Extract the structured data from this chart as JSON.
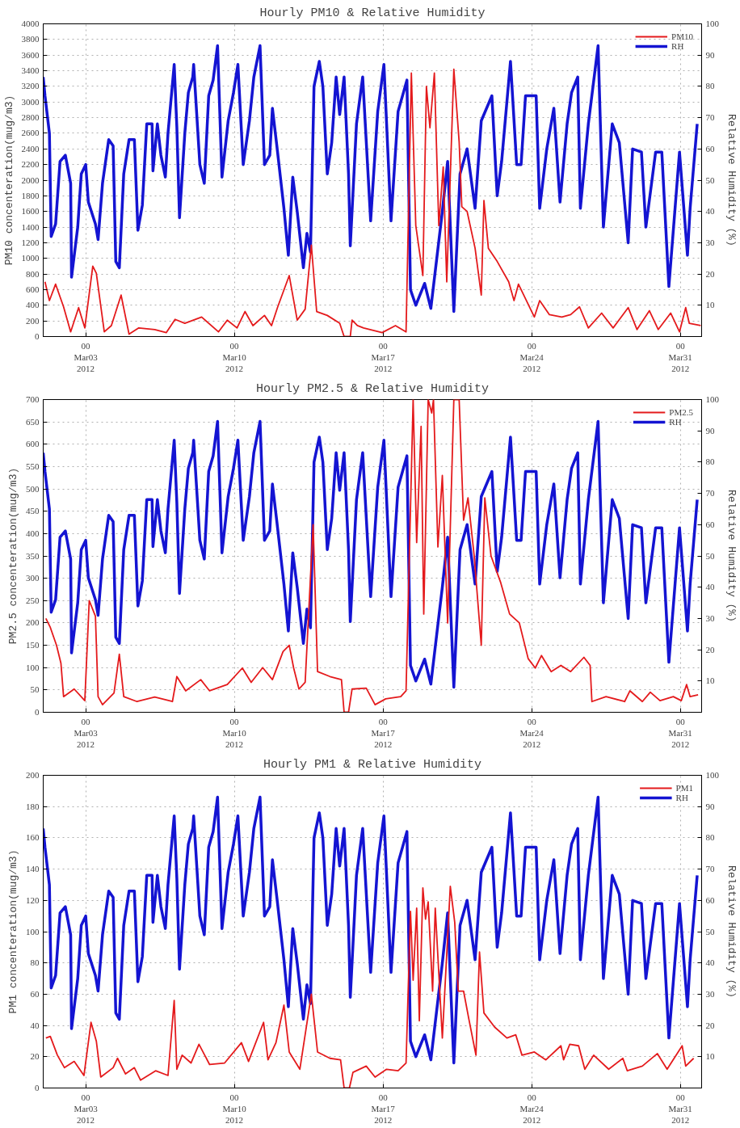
{
  "chart_data": [
    {
      "type": "line",
      "title": "Hourly PM10 & Relative Humidity",
      "ylabel": "PM10 concenteration(mug/m3)",
      "y2label": "Relative Humidity (%)",
      "xlim": [
        "2012-03-01",
        "2012-04-01"
      ],
      "xticks": [
        {
          "value": "2012-03-03",
          "label": "00\nMar03\n2012"
        },
        {
          "value": "2012-03-10",
          "label": "00\nMar10\n2012"
        },
        {
          "value": "2012-03-17",
          "label": "00\nMar17\n2012"
        },
        {
          "value": "2012-03-24",
          "label": "00\nMar24\n2012"
        },
        {
          "value": "2012-03-31",
          "label": "00\nMar31\n2012"
        }
      ],
      "ylim": [
        0,
        4000
      ],
      "yticks": [
        0,
        200,
        400,
        600,
        800,
        1000,
        1200,
        1400,
        1600,
        1800,
        2000,
        2200,
        2400,
        2600,
        2800,
        3000,
        3200,
        3400,
        3600,
        3800,
        4000
      ],
      "y2lim": [
        0,
        100
      ],
      "y2ticks": [
        10,
        20,
        30,
        40,
        50,
        60,
        70,
        80,
        90,
        100
      ],
      "grid": true,
      "legend": "top right",
      "series": [
        {
          "name": "PM10",
          "color": "#e41a1c",
          "x": [
            "2012-03-01T02:00",
            "2012-03-01T07:00",
            "2012-03-01T14:00",
            "2012-03-01T23:00",
            "2012-03-02T07:00",
            "2012-03-02T16:00",
            "2012-03-02T23:00",
            "2012-03-03T08:00",
            "2012-03-03T12:00",
            "2012-03-03T21:00",
            "2012-03-04T05:00",
            "2012-03-04T16:00",
            "2012-03-05T01:00",
            "2012-03-05T12:00",
            "2012-03-06T06:00",
            "2012-03-06T19:00",
            "2012-03-07T05:00",
            "2012-03-07T16:00",
            "2012-03-08T11:00",
            "2012-03-09T06:00",
            "2012-03-09T16:00",
            "2012-03-10T03:00",
            "2012-03-10T12:00",
            "2012-03-10T21:00",
            "2012-03-11T10:00",
            "2012-03-11T18:00",
            "2012-03-12T01:00",
            "2012-03-12T14:00",
            "2012-03-12T23:00",
            "2012-03-13T08:00",
            "2012-03-13T15:00",
            "2012-03-13T21:00",
            "2012-03-14T09:00",
            "2012-03-14T23:00",
            "2012-03-15T04:00",
            "2012-03-15T11:00",
            "2012-03-15T13:00",
            "2012-03-15T19:00",
            "2012-03-16T02:00",
            "2012-03-16T23:00",
            "2012-03-17T14:00",
            "2012-03-18T02:00",
            "2012-03-18T08:00",
            "2012-03-18T13:00",
            "2012-03-18T21:00",
            "2012-03-19T01:00",
            "2012-03-19T05:00",
            "2012-03-19T10:00",
            "2012-03-19T15:00",
            "2012-03-19T20:00",
            "2012-03-20T00:00",
            "2012-03-20T08:00",
            "2012-03-20T14:00",
            "2012-03-20T17:00",
            "2012-03-20T23:00",
            "2012-03-21T08:00",
            "2012-03-21T15:00",
            "2012-03-21T18:00",
            "2012-03-21T23:00",
            "2012-03-22T09:00",
            "2012-03-22T22:00",
            "2012-03-23T04:00",
            "2012-03-23T09:00",
            "2012-03-24T03:00",
            "2012-03-24T09:00",
            "2012-03-24T20:00",
            "2012-03-25T10:00",
            "2012-03-25T20:00",
            "2012-03-26T06:00",
            "2012-03-26T16:00",
            "2012-03-27T07:00",
            "2012-03-27T20:00",
            "2012-03-28T13:00",
            "2012-03-28T23:00",
            "2012-03-29T13:00",
            "2012-03-29T23:00",
            "2012-03-30T13:00",
            "2012-03-30T23:00",
            "2012-03-31T06:00",
            "2012-03-31T10:00",
            "2012-03-31T23:00"
          ],
          "values": [
            700,
            460,
            670,
            380,
            60,
            370,
            110,
            900,
            810,
            60,
            140,
            530,
            30,
            110,
            90,
            50,
            220,
            170,
            250,
            60,
            210,
            110,
            320,
            140,
            270,
            140,
            380,
            780,
            210,
            350,
            1170,
            320,
            270,
            170,
            0,
            0,
            210,
            140,
            110,
            50,
            140,
            60,
            3370,
            1420,
            780,
            3200,
            2670,
            3370,
            1420,
            2170,
            700,
            3420,
            2490,
            1660,
            1600,
            1130,
            530,
            1740,
            1130,
            960,
            700,
            460,
            670,
            250,
            460,
            280,
            250,
            280,
            380,
            110,
            300,
            110,
            370,
            90,
            330,
            90,
            300,
            60,
            370,
            170,
            140
          ]
        },
        {
          "name": "RH",
          "color": "#1414d2",
          "axis": "y2",
          "x": [
            "2012-03-01T00:00",
            "2012-03-01T02:00",
            "2012-03-01T07:00",
            "2012-03-01T09:00",
            "2012-03-01T14:00",
            "2012-03-01T19:00",
            "2012-03-02T01:00",
            "2012-03-02T07:00",
            "2012-03-02T08:00",
            "2012-03-02T15:00",
            "2012-03-02T19:00",
            "2012-03-03T00:00",
            "2012-03-03T03:00",
            "2012-03-03T11:00",
            "2012-03-03T14:00",
            "2012-03-03T19:00",
            "2012-03-04T02:00",
            "2012-03-04T07:00",
            "2012-03-04T10:00",
            "2012-03-04T14:00",
            "2012-03-04T19:00",
            "2012-03-05T01:00",
            "2012-03-05T07:00",
            "2012-03-05T11:00",
            "2012-03-05T16:00",
            "2012-03-05T21:00",
            "2012-03-06T03:00",
            "2012-03-06T04:00",
            "2012-03-06T09:00",
            "2012-03-06T13:00",
            "2012-03-06T18:00",
            "2012-03-06T21:00",
            "2012-03-07T04:00",
            "2012-03-07T07:00",
            "2012-03-07T10:00",
            "2012-03-07T16:00",
            "2012-03-07T20:00",
            "2012-03-08T01:00",
            "2012-03-08T02:00",
            "2012-03-08T09:00",
            "2012-03-08T14:00",
            "2012-03-08T19:00",
            "2012-03-09T00:00",
            "2012-03-09T05:00",
            "2012-03-09T10:00",
            "2012-03-09T17:00",
            "2012-03-09T23:00",
            "2012-03-10T04:00",
            "2012-03-10T10:00",
            "2012-03-10T17:00",
            "2012-03-10T22:00",
            "2012-03-11T05:00",
            "2012-03-11T10:00",
            "2012-03-11T16:00",
            "2012-03-11T19:00",
            "2012-03-12T00:00",
            "2012-03-12T08:00",
            "2012-03-12T13:00",
            "2012-03-12T18:00",
            "2012-03-12T23:00",
            "2012-03-13T06:00",
            "2012-03-13T10:00",
            "2012-03-13T14:00",
            "2012-03-13T18:00",
            "2012-03-14T00:00",
            "2012-03-14T04:00",
            "2012-03-14T09:00",
            "2012-03-14T14:00",
            "2012-03-14T19:00",
            "2012-03-14T23:00",
            "2012-03-15T04:00",
            "2012-03-15T09:00",
            "2012-03-15T11:00",
            "2012-03-15T18:00",
            "2012-03-16T01:00",
            "2012-03-16T10:00",
            "2012-03-16T18:00",
            "2012-03-17T01:00",
            "2012-03-17T09:00",
            "2012-03-17T17:00",
            "2012-03-18T03:00",
            "2012-03-18T07:00",
            "2012-03-18T13:00",
            "2012-03-18T23:00",
            "2012-03-19T06:00",
            "2012-03-19T19:00",
            "2012-03-20T01:00",
            "2012-03-20T08:00",
            "2012-03-20T15:00",
            "2012-03-20T23:00",
            "2012-03-21T08:00",
            "2012-03-21T15:00",
            "2012-03-22T03:00",
            "2012-03-22T09:00",
            "2012-03-22T14:00",
            "2012-03-23T00:00",
            "2012-03-23T07:00",
            "2012-03-23T12:00",
            "2012-03-23T17:00",
            "2012-03-24T05:00",
            "2012-03-24T09:00",
            "2012-03-24T17:00",
            "2012-03-25T01:00",
            "2012-03-25T08:00",
            "2012-03-25T16:00",
            "2012-03-25T21:00",
            "2012-03-26T04:00",
            "2012-03-26T07:00",
            "2012-03-26T16:00",
            "2012-03-27T03:00",
            "2012-03-27T09:00",
            "2012-03-27T19:00",
            "2012-03-28T03:00",
            "2012-03-28T13:00",
            "2012-03-28T18:00",
            "2012-03-29T04:00",
            "2012-03-29T09:00",
            "2012-03-29T20:00",
            "2012-03-30T03:00",
            "2012-03-30T11:00",
            "2012-03-30T23:00",
            "2012-03-31T08:00",
            "2012-03-31T11:00",
            "2012-03-31T19:00"
          ],
          "values": [
            83,
            77,
            65,
            32,
            36,
            56,
            58,
            49,
            19,
            35,
            52,
            55,
            43,
            36,
            31,
            49,
            63,
            61,
            24,
            22,
            52,
            63,
            63,
            34,
            42,
            68,
            68,
            53,
            68,
            58,
            51,
            65,
            87,
            67,
            38,
            65,
            78,
            83,
            87,
            55,
            49,
            77,
            82,
            93,
            51,
            69,
            78,
            87,
            55,
            69,
            83,
            93,
            55,
            58,
            73,
            61,
            41,
            26,
            51,
            40,
            22,
            33,
            27,
            80,
            88,
            80,
            52,
            62,
            83,
            71,
            83,
            52,
            29,
            68,
            83,
            37,
            72,
            87,
            37,
            72,
            82,
            15,
            10,
            17,
            9,
            40,
            56,
            8,
            52,
            60,
            41,
            69,
            77,
            45,
            56,
            88,
            55,
            55,
            77,
            77,
            41,
            60,
            73,
            43,
            68,
            78,
            83,
            41,
            68,
            93,
            35,
            68,
            62,
            30,
            60,
            59,
            35,
            59,
            59,
            16,
            59,
            26,
            41,
            68
          ]
        }
      ]
    },
    {
      "type": "line",
      "title": "Hourly PM2.5 & Relative Humidity",
      "ylabel": "PM2.5 concenteration(mug/m3)",
      "y2label": "Relative Humidity (%)",
      "xlim": [
        "2012-03-01",
        "2012-04-01"
      ],
      "xticks": [
        {
          "value": "2012-03-03",
          "label": "00\nMar03\n2012"
        },
        {
          "value": "2012-03-10",
          "label": "00\nMar10\n2012"
        },
        {
          "value": "2012-03-17",
          "label": "00\nMar17\n2012"
        },
        {
          "value": "2012-03-24",
          "label": "00\nMar24\n2012"
        },
        {
          "value": "2012-03-31",
          "label": "00\nMar31\n2012"
        }
      ],
      "ylim": [
        0,
        700
      ],
      "yticks": [
        0,
        50,
        100,
        150,
        200,
        250,
        300,
        350,
        400,
        450,
        500,
        550,
        600,
        650,
        700
      ],
      "y2lim": [
        0,
        100
      ],
      "y2ticks": [
        10,
        20,
        30,
        40,
        50,
        60,
        70,
        80,
        90,
        100
      ],
      "grid": true,
      "legend": "top right",
      "series": [
        {
          "name": "PM2.5",
          "color": "#e41a1c",
          "x": [
            "2012-03-01T03:00",
            "2012-03-01T08:00",
            "2012-03-01T15:00",
            "2012-03-01T20:00",
            "2012-03-01T23:00",
            "2012-03-02T11:00",
            "2012-03-02T23:00",
            "2012-03-03T04:00",
            "2012-03-03T11:00",
            "2012-03-03T14:00",
            "2012-03-03T19:00",
            "2012-03-04T08:00",
            "2012-03-04T14:00",
            "2012-03-04T19:00",
            "2012-03-05T10:00",
            "2012-03-06T06:00",
            "2012-03-07T02:00",
            "2012-03-07T07:00",
            "2012-03-07T17:00",
            "2012-03-08T10:00",
            "2012-03-08T20:00",
            "2012-03-09T16:00",
            "2012-03-10T09:00",
            "2012-03-10T19:00",
            "2012-03-11T08:00",
            "2012-03-11T19:00",
            "2012-03-12T07:00",
            "2012-03-12T14:00",
            "2012-03-12T19:00",
            "2012-03-13T01:00",
            "2012-03-13T08:00",
            "2012-03-13T17:00",
            "2012-03-13T22:00",
            "2012-03-14T12:00",
            "2012-03-15T01:00",
            "2012-03-15T04:00",
            "2012-03-15T09:00",
            "2012-03-15T13:00",
            "2012-03-16T05:00",
            "2012-03-16T15:00",
            "2012-03-17T03:00",
            "2012-03-17T20:00",
            "2012-03-18T02:00",
            "2012-03-18T10:00",
            "2012-03-18T14:00",
            "2012-03-18T19:00",
            "2012-03-18T22:00",
            "2012-03-19T03:00",
            "2012-03-19T07:00",
            "2012-03-19T09:00",
            "2012-03-19T14:00",
            "2012-03-19T19:00",
            "2012-03-20T01:00",
            "2012-03-20T08:00",
            "2012-03-20T14:00",
            "2012-03-20T19:00",
            "2012-03-21T00:00",
            "2012-03-21T07:00",
            "2012-03-21T15:00",
            "2012-03-21T19:00",
            "2012-03-22T02:00",
            "2012-03-22T13:00",
            "2012-03-22T23:00",
            "2012-03-23T10:00",
            "2012-03-23T20:00",
            "2012-03-24T04:00",
            "2012-03-24T11:00",
            "2012-03-24T22:00",
            "2012-03-25T09:00",
            "2012-03-25T20:00",
            "2012-03-26T11:00",
            "2012-03-26T18:00",
            "2012-03-26T20:00",
            "2012-03-27T12:00",
            "2012-03-28T09:00",
            "2012-03-28T15:00",
            "2012-03-29T05:00",
            "2012-03-29T14:00",
            "2012-03-30T01:00",
            "2012-03-30T16:00",
            "2012-03-31T01:00",
            "2012-03-31T07:00",
            "2012-03-31T11:00",
            "2012-03-31T20:00"
          ],
          "values": [
            210,
            190,
            150,
            110,
            35,
            52,
            26,
            250,
            215,
            35,
            17,
            43,
            130,
            35,
            24,
            34,
            24,
            80,
            48,
            73,
            48,
            62,
            99,
            67,
            100,
            73,
            136,
            150,
            99,
            52,
            67,
            420,
            91,
            80,
            73,
            0,
            0,
            52,
            54,
            17,
            30,
            35,
            48,
            700,
            380,
            640,
            220,
            700,
            670,
            700,
            370,
            530,
            200,
            700,
            700,
            430,
            480,
            350,
            150,
            480,
            350,
            290,
            220,
            200,
            120,
            99,
            127,
            91,
            105,
            91,
            123,
            105,
            24,
            35,
            24,
            48,
            24,
            45,
            26,
            35,
            26,
            62,
            35,
            39
          ]
        },
        {
          "name": "RH",
          "color": "#1414d2",
          "axis": "y2",
          "x": [
            "2012-03-01T00:00",
            "2012-03-01T02:00",
            "2012-03-01T07:00",
            "2012-03-01T09:00",
            "2012-03-01T14:00",
            "2012-03-01T19:00",
            "2012-03-02T01:00",
            "2012-03-02T07:00",
            "2012-03-02T08:00",
            "2012-03-02T15:00",
            "2012-03-02T19:00",
            "2012-03-03T00:00",
            "2012-03-03T03:00",
            "2012-03-03T11:00",
            "2012-03-03T14:00",
            "2012-03-03T19:00",
            "2012-03-04T02:00",
            "2012-03-04T07:00",
            "2012-03-04T10:00",
            "2012-03-04T14:00",
            "2012-03-04T19:00",
            "2012-03-05T01:00",
            "2012-03-05T07:00",
            "2012-03-05T11:00",
            "2012-03-05T16:00",
            "2012-03-05T21:00",
            "2012-03-06T03:00",
            "2012-03-06T04:00",
            "2012-03-06T09:00",
            "2012-03-06T13:00",
            "2012-03-06T18:00",
            "2012-03-06T21:00",
            "2012-03-07T04:00",
            "2012-03-07T07:00",
            "2012-03-07T10:00",
            "2012-03-07T16:00",
            "2012-03-07T20:00",
            "2012-03-08T01:00",
            "2012-03-08T02:00",
            "2012-03-08T09:00",
            "2012-03-08T14:00",
            "2012-03-08T19:00",
            "2012-03-09T00:00",
            "2012-03-09T05:00",
            "2012-03-09T10:00",
            "2012-03-09T17:00",
            "2012-03-09T23:00",
            "2012-03-10T04:00",
            "2012-03-10T10:00",
            "2012-03-10T17:00",
            "2012-03-10T22:00",
            "2012-03-11T05:00",
            "2012-03-11T10:00",
            "2012-03-11T16:00",
            "2012-03-11T19:00",
            "2012-03-12T00:00",
            "2012-03-12T08:00",
            "2012-03-12T13:00",
            "2012-03-12T18:00",
            "2012-03-12T23:00",
            "2012-03-13T06:00",
            "2012-03-13T10:00",
            "2012-03-13T14:00",
            "2012-03-13T18:00",
            "2012-03-14T00:00",
            "2012-03-14T04:00",
            "2012-03-14T09:00",
            "2012-03-14T14:00",
            "2012-03-14T19:00",
            "2012-03-14T23:00",
            "2012-03-15T04:00",
            "2012-03-15T09:00",
            "2012-03-15T11:00",
            "2012-03-15T18:00",
            "2012-03-16T01:00",
            "2012-03-16T10:00",
            "2012-03-16T18:00",
            "2012-03-17T01:00",
            "2012-03-17T09:00",
            "2012-03-17T17:00",
            "2012-03-18T03:00",
            "2012-03-18T07:00",
            "2012-03-18T13:00",
            "2012-03-18T23:00",
            "2012-03-19T06:00",
            "2012-03-19T19:00",
            "2012-03-20T01:00",
            "2012-03-20T08:00",
            "2012-03-20T15:00",
            "2012-03-20T23:00",
            "2012-03-21T08:00",
            "2012-03-21T15:00",
            "2012-03-22T03:00",
            "2012-03-22T09:00",
            "2012-03-22T14:00",
            "2012-03-23T00:00",
            "2012-03-23T07:00",
            "2012-03-23T12:00",
            "2012-03-23T17:00",
            "2012-03-24T05:00",
            "2012-03-24T09:00",
            "2012-03-24T17:00",
            "2012-03-25T01:00",
            "2012-03-25T08:00",
            "2012-03-25T16:00",
            "2012-03-25T21:00",
            "2012-03-26T04:00",
            "2012-03-26T07:00",
            "2012-03-26T16:00",
            "2012-03-27T03:00",
            "2012-03-27T09:00",
            "2012-03-27T19:00",
            "2012-03-28T03:00",
            "2012-03-28T13:00",
            "2012-03-28T18:00",
            "2012-03-29T04:00",
            "2012-03-29T09:00",
            "2012-03-29T20:00",
            "2012-03-30T03:00",
            "2012-03-30T11:00",
            "2012-03-30T23:00",
            "2012-03-31T08:00",
            "2012-03-31T11:00",
            "2012-03-31T19:00"
          ],
          "values": [
            83,
            77,
            65,
            32,
            36,
            56,
            58,
            49,
            19,
            35,
            52,
            55,
            43,
            36,
            31,
            49,
            63,
            61,
            24,
            22,
            52,
            63,
            63,
            34,
            42,
            68,
            68,
            53,
            68,
            58,
            51,
            65,
            87,
            67,
            38,
            65,
            78,
            83,
            87,
            55,
            49,
            77,
            82,
            93,
            51,
            69,
            78,
            87,
            55,
            69,
            83,
            93,
            55,
            58,
            73,
            61,
            41,
            26,
            51,
            40,
            22,
            33,
            27,
            80,
            88,
            80,
            52,
            62,
            83,
            71,
            83,
            52,
            29,
            68,
            83,
            37,
            72,
            87,
            37,
            72,
            82,
            15,
            10,
            17,
            9,
            40,
            56,
            8,
            52,
            60,
            41,
            69,
            77,
            45,
            56,
            88,
            55,
            55,
            77,
            77,
            41,
            60,
            73,
            43,
            68,
            78,
            83,
            41,
            68,
            93,
            35,
            68,
            62,
            30,
            60,
            59,
            35,
            59,
            59,
            16,
            59,
            26,
            41,
            68
          ]
        }
      ]
    },
    {
      "type": "line",
      "title": "Hourly PM1 & Relative Humidity",
      "ylabel": "PM1 concenteration(mug/m3)",
      "y2label": "Relative Humidity (%)",
      "xlim": [
        "2012-03-01",
        "2012-04-01"
      ],
      "xticks": [
        {
          "value": "2012-03-03",
          "label": "00\nMar03\n2012"
        },
        {
          "value": "2012-03-10",
          "label": "00\nMar10\n2012"
        },
        {
          "value": "2012-03-17",
          "label": "00\nMar17\n2012"
        },
        {
          "value": "2012-03-24",
          "label": "00\nMar24\n2012"
        },
        {
          "value": "2012-03-31",
          "label": "00\nMar31\n2012"
        }
      ],
      "ylim": [
        0,
        200
      ],
      "yticks": [
        0,
        20,
        40,
        60,
        80,
        100,
        120,
        140,
        160,
        180,
        200
      ],
      "y2lim": [
        0,
        100
      ],
      "y2ticks": [
        10,
        20,
        30,
        40,
        50,
        60,
        70,
        80,
        90,
        100
      ],
      "grid": true,
      "legend": "top right",
      "series": [
        {
          "name": "PM1",
          "color": "#e41a1c",
          "x": [
            "2012-03-01T03:00",
            "2012-03-01T08:00",
            "2012-03-01T16:00",
            "2012-03-02T00:00",
            "2012-03-02T11:00",
            "2012-03-02T22:00",
            "2012-03-03T06:00",
            "2012-03-03T12:00",
            "2012-03-03T17:00",
            "2012-03-04T07:00",
            "2012-03-04T12:00",
            "2012-03-04T21:00",
            "2012-03-05T07:00",
            "2012-03-05T14:00",
            "2012-03-06T07:00",
            "2012-03-06T21:00",
            "2012-03-07T04:00",
            "2012-03-07T07:00",
            "2012-03-07T13:00",
            "2012-03-07T23:00",
            "2012-03-08T08:00",
            "2012-03-08T20:00",
            "2012-03-09T13:00",
            "2012-03-10T08:00",
            "2012-03-10T16:00",
            "2012-03-11T09:00",
            "2012-03-11T14:00",
            "2012-03-11T23:00",
            "2012-03-12T08:00",
            "2012-03-12T14:00",
            "2012-03-13T02:00",
            "2012-03-13T15:00",
            "2012-03-13T22:00",
            "2012-03-14T12:00",
            "2012-03-15T00:00",
            "2012-03-15T04:00",
            "2012-03-15T10:00",
            "2012-03-15T14:00",
            "2012-03-16T05:00",
            "2012-03-16T15:00",
            "2012-03-17T04:00",
            "2012-03-17T17:00",
            "2012-03-18T02:00",
            "2012-03-18T07:00",
            "2012-03-18T10:00",
            "2012-03-18T14:00",
            "2012-03-18T17:00",
            "2012-03-18T21:00",
            "2012-03-19T00:00",
            "2012-03-19T03:00",
            "2012-03-19T08:00",
            "2012-03-19T11:00",
            "2012-03-19T19:00",
            "2012-03-20T04:00",
            "2012-03-20T09:00",
            "2012-03-20T13:00",
            "2012-03-20T19:00",
            "2012-03-21T01:00",
            "2012-03-21T09:00",
            "2012-03-21T13:00",
            "2012-03-21T18:00",
            "2012-03-22T06:00",
            "2012-03-22T20:00",
            "2012-03-23T06:00",
            "2012-03-23T13:00",
            "2012-03-24T03:00",
            "2012-03-24T16:00",
            "2012-03-25T09:00",
            "2012-03-25T12:00",
            "2012-03-25T19:00",
            "2012-03-26T05:00",
            "2012-03-26T12:00",
            "2012-03-26T22:00",
            "2012-03-27T15:00",
            "2012-03-28T07:00",
            "2012-03-28T12:00",
            "2012-03-29T05:00",
            "2012-03-29T22:00",
            "2012-03-30T09:00",
            "2012-03-31T02:00",
            "2012-03-31T06:00",
            "2012-03-31T15:00"
          ],
          "values": [
            32,
            33,
            21,
            13,
            17,
            8,
            42,
            30,
            7,
            13,
            19,
            9,
            13,
            5,
            11,
            8,
            56,
            12,
            21,
            16,
            28,
            15,
            16,
            29,
            17,
            42,
            18,
            29,
            53,
            23,
            12,
            60,
            23,
            19,
            18,
            0,
            0,
            10,
            14,
            7,
            12,
            11,
            16,
            113,
            69,
            115,
            43,
            128,
            108,
            119,
            62,
            115,
            32,
            129,
            106,
            62,
            62,
            44,
            21,
            87,
            48,
            39,
            32,
            34,
            21,
            23,
            18,
            27,
            18,
            28,
            27,
            12,
            21,
            12,
            19,
            11,
            14,
            22,
            12,
            27,
            14,
            19
          ]
        },
        {
          "name": "RH",
          "color": "#1414d2",
          "axis": "y2",
          "x": [
            "2012-03-01T00:00",
            "2012-03-01T02:00",
            "2012-03-01T07:00",
            "2012-03-01T09:00",
            "2012-03-01T14:00",
            "2012-03-01T19:00",
            "2012-03-02T01:00",
            "2012-03-02T07:00",
            "2012-03-02T08:00",
            "2012-03-02T15:00",
            "2012-03-02T19:00",
            "2012-03-03T00:00",
            "2012-03-03T03:00",
            "2012-03-03T11:00",
            "2012-03-03T14:00",
            "2012-03-03T19:00",
            "2012-03-04T02:00",
            "2012-03-04T07:00",
            "2012-03-04T10:00",
            "2012-03-04T14:00",
            "2012-03-04T19:00",
            "2012-03-05T01:00",
            "2012-03-05T07:00",
            "2012-03-05T11:00",
            "2012-03-05T16:00",
            "2012-03-05T21:00",
            "2012-03-06T03:00",
            "2012-03-06T04:00",
            "2012-03-06T09:00",
            "2012-03-06T13:00",
            "2012-03-06T18:00",
            "2012-03-06T21:00",
            "2012-03-07T04:00",
            "2012-03-07T07:00",
            "2012-03-07T10:00",
            "2012-03-07T16:00",
            "2012-03-07T20:00",
            "2012-03-08T01:00",
            "2012-03-08T02:00",
            "2012-03-08T09:00",
            "2012-03-08T14:00",
            "2012-03-08T19:00",
            "2012-03-09T00:00",
            "2012-03-09T05:00",
            "2012-03-09T10:00",
            "2012-03-09T17:00",
            "2012-03-09T23:00",
            "2012-03-10T04:00",
            "2012-03-10T10:00",
            "2012-03-10T17:00",
            "2012-03-10T22:00",
            "2012-03-11T05:00",
            "2012-03-11T10:00",
            "2012-03-11T16:00",
            "2012-03-11T19:00",
            "2012-03-12T00:00",
            "2012-03-12T08:00",
            "2012-03-12T13:00",
            "2012-03-12T18:00",
            "2012-03-12T23:00",
            "2012-03-13T06:00",
            "2012-03-13T10:00",
            "2012-03-13T14:00",
            "2012-03-13T18:00",
            "2012-03-14T00:00",
            "2012-03-14T04:00",
            "2012-03-14T09:00",
            "2012-03-14T14:00",
            "2012-03-14T19:00",
            "2012-03-14T23:00",
            "2012-03-15T04:00",
            "2012-03-15T09:00",
            "2012-03-15T11:00",
            "2012-03-15T18:00",
            "2012-03-16T01:00",
            "2012-03-16T10:00",
            "2012-03-16T18:00",
            "2012-03-17T01:00",
            "2012-03-17T09:00",
            "2012-03-17T17:00",
            "2012-03-18T03:00",
            "2012-03-18T07:00",
            "2012-03-18T13:00",
            "2012-03-18T23:00",
            "2012-03-19T06:00",
            "2012-03-19T19:00",
            "2012-03-20T01:00",
            "2012-03-20T08:00",
            "2012-03-20T15:00",
            "2012-03-20T23:00",
            "2012-03-21T08:00",
            "2012-03-21T15:00",
            "2012-03-22T03:00",
            "2012-03-22T09:00",
            "2012-03-22T14:00",
            "2012-03-23T00:00",
            "2012-03-23T07:00",
            "2012-03-23T12:00",
            "2012-03-23T17:00",
            "2012-03-24T05:00",
            "2012-03-24T09:00",
            "2012-03-24T17:00",
            "2012-03-25T01:00",
            "2012-03-25T08:00",
            "2012-03-25T16:00",
            "2012-03-25T21:00",
            "2012-03-26T04:00",
            "2012-03-26T07:00",
            "2012-03-26T16:00",
            "2012-03-27T03:00",
            "2012-03-27T09:00",
            "2012-03-27T19:00",
            "2012-03-28T03:00",
            "2012-03-28T13:00",
            "2012-03-28T18:00",
            "2012-03-29T04:00",
            "2012-03-29T09:00",
            "2012-03-29T20:00",
            "2012-03-30T03:00",
            "2012-03-30T11:00",
            "2012-03-30T23:00",
            "2012-03-31T08:00",
            "2012-03-31T11:00",
            "2012-03-31T19:00"
          ],
          "values": [
            83,
            77,
            65,
            32,
            36,
            56,
            58,
            49,
            19,
            35,
            52,
            55,
            43,
            36,
            31,
            49,
            63,
            61,
            24,
            22,
            52,
            63,
            63,
            34,
            42,
            68,
            68,
            53,
            68,
            58,
            51,
            65,
            87,
            67,
            38,
            65,
            78,
            83,
            87,
            55,
            49,
            77,
            82,
            93,
            51,
            69,
            78,
            87,
            55,
            69,
            83,
            93,
            55,
            58,
            73,
            61,
            41,
            26,
            51,
            40,
            22,
            33,
            27,
            80,
            88,
            80,
            52,
            62,
            83,
            71,
            83,
            52,
            29,
            68,
            83,
            37,
            72,
            87,
            37,
            72,
            82,
            15,
            10,
            17,
            9,
            40,
            56,
            8,
            52,
            60,
            41,
            69,
            77,
            45,
            56,
            88,
            55,
            55,
            77,
            77,
            41,
            60,
            73,
            43,
            68,
            78,
            83,
            41,
            68,
            93,
            35,
            68,
            62,
            30,
            60,
            59,
            35,
            59,
            59,
            16,
            59,
            26,
            41,
            68
          ]
        }
      ]
    }
  ]
}
